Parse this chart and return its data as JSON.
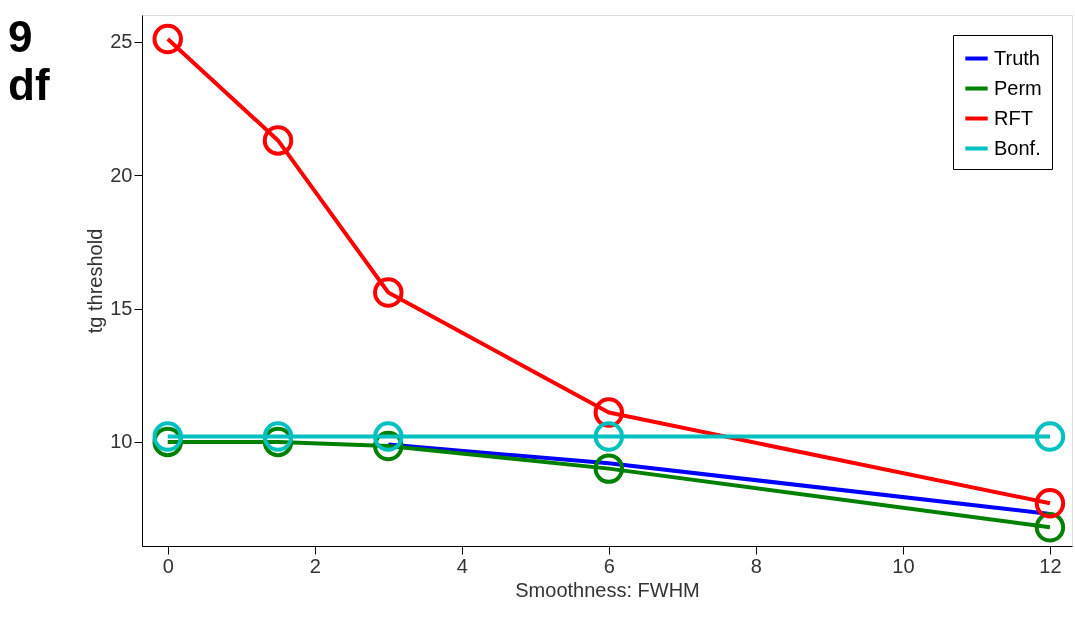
{
  "chart_data": {
    "type": "line",
    "xlabel": "Smoothness:  FWHM",
    "ylabel": "tg threshold",
    "annotations": [
      "9 df"
    ],
    "x": [
      0,
      1.5,
      3,
      6,
      12
    ],
    "series": [
      {
        "name": "Truth",
        "color": "#0000ff",
        "marker": "none",
        "values": [
          null,
          null,
          9.9,
          9.2,
          7.3
        ]
      },
      {
        "name": "Perm",
        "color": "#008000",
        "marker": "circle",
        "values": [
          10.0,
          10.0,
          9.85,
          9.0,
          6.8
        ]
      },
      {
        "name": "RFT",
        "color": "#ff0000",
        "marker": "circle",
        "values": [
          25.1,
          21.3,
          15.6,
          11.1,
          7.7
        ]
      },
      {
        "name": "Bonf.",
        "color": "#00c0c0",
        "marker": "circle",
        "values": [
          10.2,
          10.2,
          10.2,
          10.2,
          10.2
        ]
      }
    ],
    "xlim": [
      -0.35,
      12.3
    ],
    "xticks": [
      0,
      2,
      4,
      6,
      8,
      10,
      12
    ],
    "ylim": [
      6.1,
      26
    ],
    "yticks": [
      10,
      15,
      20,
      25
    ],
    "grid": false,
    "legend": "top right",
    "line_style": "solid"
  }
}
